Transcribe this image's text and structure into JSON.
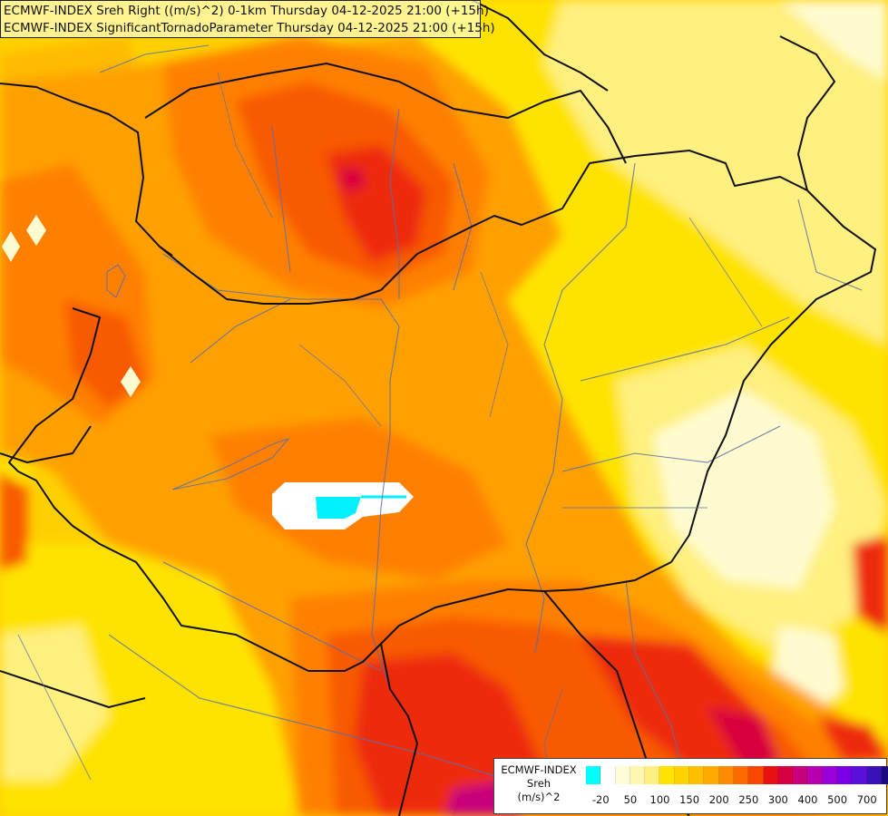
{
  "title": {
    "line1": "ECMWF-INDEX Sreh Right ((m/s)^2) 0-1km Thursday 04-12-2025 21:00 (+15h)",
    "line2": "ECMWF-INDEX SignificantTornadoParameter Thursday 04-12-2025 21:00 (+15h)"
  },
  "legend": {
    "model": "ECMWF-INDEX",
    "variable": "Sreh",
    "unit": "(m/s)^2",
    "colors": [
      "#00ffff",
      "#ffffff",
      "#fffcd8",
      "#fff7b0",
      "#ffef80",
      "#ffe300",
      "#ffd200",
      "#ffbf00",
      "#ffa800",
      "#ff8c00",
      "#ff6a00",
      "#f64600",
      "#e81010",
      "#d80040",
      "#c8007a",
      "#b800b0",
      "#9a00d8",
      "#7a00e6",
      "#5a10d8",
      "#3a10b8",
      "#1a0a80"
    ],
    "ticks": [
      "-20",
      "50",
      "100",
      "150",
      "200",
      "250",
      "300",
      "400",
      "500",
      "700"
    ]
  },
  "map": {
    "base_color": "#ffd000",
    "palette": {
      "pale": "#fffbd0",
      "light_yellow": "#fff080",
      "yellow": "#ffe300",
      "gold": "#ffd000",
      "amber": "#ffbb00",
      "orange": "#ffa000",
      "dark_orange": "#ff8000",
      "red_orange": "#f85a00",
      "red": "#ee2a10",
      "crimson": "#d8003c",
      "magenta": "#c8007a",
      "cyan": "#00f0ff",
      "border": "#111111",
      "river": "#5a6fa8"
    }
  }
}
